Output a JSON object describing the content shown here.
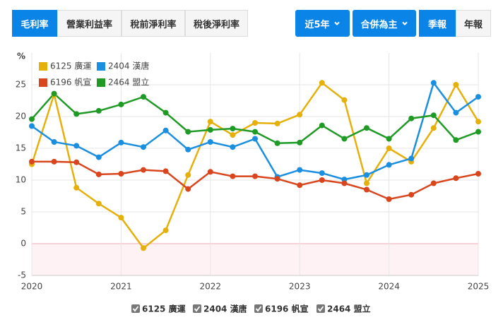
{
  "tabs": [
    "毛利率",
    "營業利益率",
    "稅前淨利率",
    "稅後淨利率"
  ],
  "controls": [
    "近5年",
    "合併為主",
    "季報",
    "年報"
  ],
  "chart_data": {
    "type": "line",
    "ylabel": "%",
    "x": [
      2020,
      2020.25,
      2020.5,
      2020.75,
      2021,
      2021.25,
      2021.5,
      2021.75,
      2022,
      2022.25,
      2022.5,
      2022.75,
      2023,
      2023.25,
      2023.5,
      2023.75,
      2024,
      2024.25,
      2024.5,
      2024.75,
      2025
    ],
    "xlim": [
      2020,
      2025
    ],
    "xticks": [
      2020,
      2021,
      2022,
      2023,
      2024,
      2025
    ],
    "ylim": [
      -5,
      30
    ],
    "yticks": [
      -5,
      0,
      5,
      10,
      15,
      20,
      25
    ],
    "grid": true,
    "legend": "upper left",
    "series": [
      {
        "name": "6125 廣運",
        "color": "#e6b00b",
        "values": [
          12.5,
          23.5,
          8.8,
          6.3,
          4.1,
          -0.7,
          2.1,
          10.8,
          19.2,
          17.1,
          19.0,
          18.9,
          20.3,
          25.3,
          22.6,
          9.5,
          15.0,
          12.9,
          18.2,
          25.0,
          19.2
        ]
      },
      {
        "name": "2404 漢唐",
        "color": "#1a8fe0",
        "values": [
          18.5,
          16.0,
          15.4,
          13.6,
          15.9,
          15.2,
          17.8,
          14.8,
          16.0,
          15.2,
          16.5,
          10.5,
          11.6,
          11.1,
          10.1,
          10.8,
          12.4,
          13.4,
          25.3,
          20.6,
          23.1
        ]
      },
      {
        "name": "6196 帆宣",
        "color": "#d9461e",
        "values": [
          12.9,
          12.9,
          12.8,
          10.9,
          11.0,
          11.6,
          11.4,
          8.6,
          11.3,
          10.6,
          10.6,
          10.2,
          9.2,
          10.0,
          9.5,
          8.5,
          7.0,
          7.7,
          9.5,
          10.3,
          11.0
        ]
      },
      {
        "name": "2464 盟立",
        "color": "#1f9a24",
        "values": [
          19.6,
          23.6,
          20.4,
          20.9,
          21.9,
          23.1,
          20.6,
          17.6,
          17.9,
          18.1,
          17.6,
          15.8,
          15.9,
          18.6,
          16.5,
          18.2,
          16.5,
          19.7,
          20.2,
          16.3,
          17.6
        ]
      }
    ]
  }
}
